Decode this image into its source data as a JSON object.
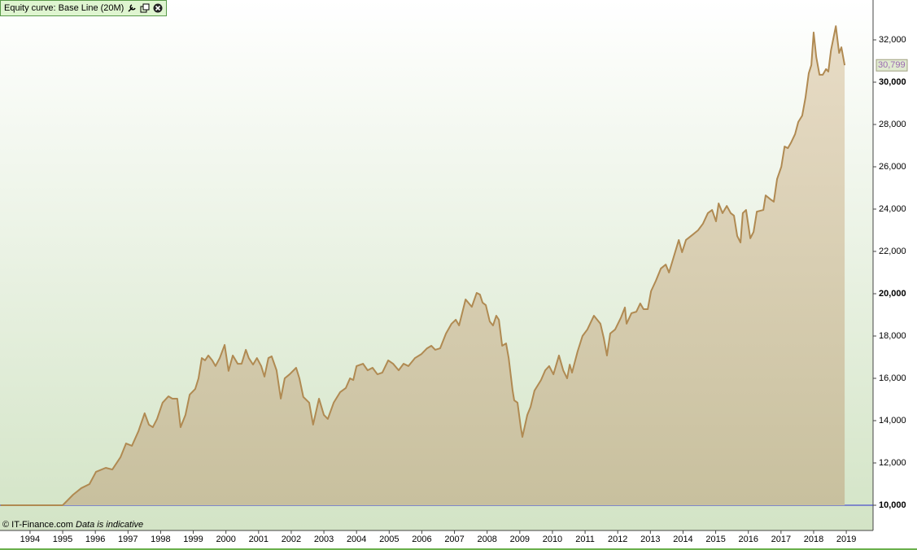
{
  "chart_data": {
    "type": "line",
    "title": "Equity curve: Base Line (20M)",
    "footer_source": "© IT-Finance.com",
    "footer_note": "Data is indicative",
    "last_value_label": "30,799",
    "reference_line": 10000,
    "reference_color": "#2a2acc",
    "grid": false,
    "xlim": [
      1993.08,
      2019.82
    ],
    "ylim": [
      8808,
      33885
    ],
    "xticks": [
      1994,
      1995,
      1996,
      1997,
      1998,
      1999,
      2000,
      2001,
      2002,
      2003,
      2004,
      2005,
      2006,
      2007,
      2008,
      2009,
      2010,
      2011,
      2012,
      2013,
      2014,
      2015,
      2016,
      2017,
      2018,
      2019
    ],
    "yticks": [
      {
        "value": 10000,
        "label": "10,000"
      },
      {
        "value": 12000,
        "label": "12,000"
      },
      {
        "value": 14000,
        "label": "14,000"
      },
      {
        "value": 16000,
        "label": "16,000"
      },
      {
        "value": 18000,
        "label": "18,000"
      },
      {
        "value": 20000,
        "label": "20,000"
      },
      {
        "value": 22000,
        "label": "22,000"
      },
      {
        "value": 24000,
        "label": "24,000"
      },
      {
        "value": 26000,
        "label": "26,000"
      },
      {
        "value": 28000,
        "label": "28,000"
      },
      {
        "value": 30000,
        "label": "30,000"
      },
      {
        "value": 32000,
        "label": "32,000"
      }
    ],
    "series": [
      {
        "name": "Equity curve",
        "color": "#b08a52",
        "x": [
          1993.1,
          1995.0,
          1995.32,
          1995.57,
          1995.82,
          1996.02,
          1996.32,
          1996.52,
          1996.77,
          1996.94,
          1997.12,
          1997.32,
          1997.51,
          1997.64,
          1997.76,
          1997.89,
          1998.06,
          1998.24,
          1998.36,
          1998.51,
          1998.61,
          1998.76,
          1998.89,
          1999.06,
          1999.16,
          1999.26,
          1999.36,
          1999.46,
          1999.58,
          1999.68,
          1999.81,
          1999.96,
          2000.08,
          2000.21,
          2000.36,
          2000.48,
          2000.61,
          2000.7,
          2000.83,
          2000.95,
          2001.08,
          2001.18,
          2001.3,
          2001.4,
          2001.55,
          2001.68,
          2001.8,
          2001.95,
          2002.15,
          2002.25,
          2002.37,
          2002.55,
          2002.67,
          2002.85,
          2003.0,
          2003.12,
          2003.3,
          2003.5,
          2003.67,
          2003.8,
          2003.9,
          2004.0,
          2004.2,
          2004.34,
          2004.49,
          2004.64,
          2004.79,
          2004.97,
          2005.12,
          2005.29,
          2005.44,
          2005.59,
          2005.79,
          2005.99,
          2006.16,
          2006.29,
          2006.41,
          2006.56,
          2006.74,
          2006.91,
          2007.04,
          2007.14,
          2007.34,
          2007.53,
          2007.68,
          2007.78,
          2007.86,
          2007.96,
          2008.08,
          2008.18,
          2008.28,
          2008.36,
          2008.46,
          2008.58,
          2008.66,
          2008.78,
          2008.83,
          2008.93,
          2009.03,
          2009.08,
          2009.23,
          2009.33,
          2009.45,
          2009.65,
          2009.78,
          2009.9,
          2010.03,
          2010.2,
          2010.33,
          2010.45,
          2010.53,
          2010.6,
          2010.77,
          2010.92,
          2011.07,
          2011.27,
          2011.47,
          2011.57,
          2011.67,
          2011.77,
          2011.92,
          2012.1,
          2012.22,
          2012.27,
          2012.42,
          2012.57,
          2012.69,
          2012.79,
          2012.92,
          2013.02,
          2013.17,
          2013.32,
          2013.47,
          2013.57,
          2013.72,
          2013.87,
          2013.97,
          2014.09,
          2014.31,
          2014.46,
          2014.61,
          2014.76,
          2014.89,
          2015.01,
          2015.09,
          2015.21,
          2015.34,
          2015.46,
          2015.56,
          2015.66,
          2015.76,
          2015.83,
          2015.93,
          2016.06,
          2016.16,
          2016.26,
          2016.46,
          2016.53,
          2016.68,
          2016.78,
          2016.88,
          2017.01,
          2017.11,
          2017.21,
          2017.31,
          2017.43,
          2017.53,
          2017.65,
          2017.75,
          2017.85,
          2017.93,
          2018.0,
          2018.08,
          2018.18,
          2018.28,
          2018.38,
          2018.45,
          2018.53,
          2018.68,
          2018.78,
          2018.85,
          2018.95
        ],
        "values": [
          10000,
          10000,
          10500,
          10810,
          11000,
          11580,
          11770,
          11690,
          12270,
          12920,
          12810,
          13500,
          14350,
          13810,
          13690,
          14080,
          14850,
          15150,
          15040,
          15040,
          13690,
          14270,
          15230,
          15500,
          16000,
          16960,
          16850,
          17080,
          16850,
          16580,
          16960,
          17580,
          16350,
          17080,
          16690,
          16690,
          17350,
          16960,
          16650,
          16960,
          16580,
          16080,
          16960,
          17040,
          16380,
          15040,
          16000,
          16190,
          16500,
          16000,
          15120,
          14850,
          13810,
          15040,
          14270,
          14080,
          14850,
          15350,
          15540,
          16000,
          15920,
          16580,
          16690,
          16380,
          16500,
          16190,
          16270,
          16850,
          16690,
          16380,
          16690,
          16580,
          16960,
          17150,
          17420,
          17540,
          17350,
          17420,
          18120,
          18580,
          18770,
          18500,
          19730,
          19380,
          20040,
          19960,
          19580,
          19460,
          18690,
          18500,
          18960,
          18770,
          17540,
          17650,
          16960,
          15420,
          14960,
          14850,
          13690,
          13230,
          14270,
          14650,
          15420,
          15920,
          16380,
          16580,
          16190,
          17080,
          16380,
          16000,
          16650,
          16270,
          17270,
          18000,
          18310,
          18960,
          18580,
          17920,
          17080,
          18120,
          18310,
          18880,
          19350,
          18580,
          19080,
          19150,
          19540,
          19270,
          19270,
          20120,
          20620,
          21190,
          21380,
          21000,
          21770,
          22540,
          21960,
          22540,
          22810,
          23000,
          23310,
          23810,
          23960,
          23420,
          24270,
          23810,
          24150,
          23810,
          23690,
          22730,
          22420,
          23810,
          23960,
          22620,
          22920,
          23880,
          23960,
          24650,
          24460,
          24350,
          25420,
          26000,
          26960,
          26880,
          27150,
          27540,
          28120,
          28420,
          29270,
          30420,
          30810,
          32350,
          31190,
          30350,
          30350,
          30620,
          30500,
          31500,
          32650,
          31380,
          31650,
          30799
        ]
      }
    ]
  }
}
